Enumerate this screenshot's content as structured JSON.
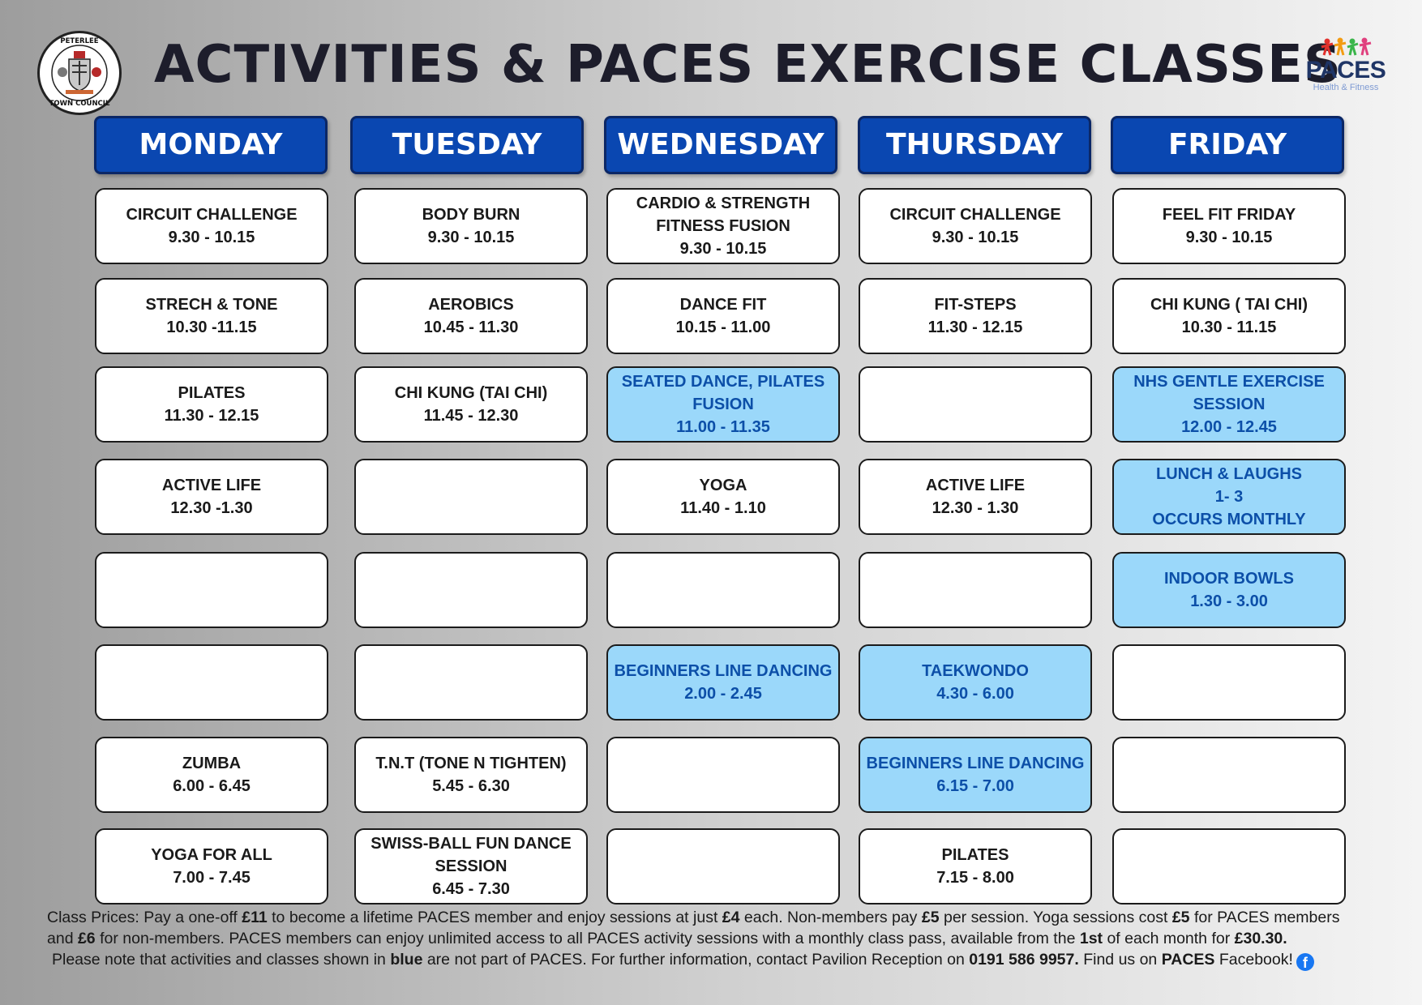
{
  "header": {
    "title": "ACTIVITIES & PACES EXERCISE CLASSES",
    "seal_text_top": "PETERLEE",
    "seal_text_bottom": "TOWN COUNCIL",
    "logo_text": "PACES",
    "logo_tagline": "Health & Fitness"
  },
  "colors": {
    "day_header_bg": "#0a47b1",
    "paces_class_bg": "#ffffff",
    "non_paces_class_bg": "#9bd8fa",
    "non_paces_text": "#0c4fa8"
  },
  "days": [
    {
      "name": "MONDAY",
      "slots": [
        {
          "name": "CIRCUIT CHALLENGE",
          "time": "9.30 - 10.15",
          "blue": false
        },
        {
          "name": "STRECH & TONE",
          "time": "10.30 -11.15",
          "blue": false
        },
        {
          "name": "PILATES",
          "time": "11.30 - 12.15",
          "blue": false
        },
        {
          "name": "ACTIVE LIFE",
          "time": "12.30 -1.30",
          "blue": false
        },
        {
          "name": "",
          "time": "",
          "blue": false
        },
        {
          "name": "",
          "time": "",
          "blue": false
        },
        {
          "name": "ZUMBA",
          "time": "6.00 - 6.45",
          "blue": false
        },
        {
          "name": "YOGA FOR ALL",
          "time": "7.00 - 7.45",
          "blue": false
        }
      ]
    },
    {
      "name": "TUESDAY",
      "slots": [
        {
          "name": "BODY BURN",
          "time": "9.30 - 10.15",
          "blue": false
        },
        {
          "name": "AEROBICS",
          "time": "10.45 - 11.30",
          "blue": false
        },
        {
          "name": "CHI KUNG (TAI CHI)",
          "time": "11.45 - 12.30",
          "blue": false
        },
        {
          "name": "",
          "time": "",
          "blue": false
        },
        {
          "name": "",
          "time": "",
          "blue": false
        },
        {
          "name": "",
          "time": "",
          "blue": false
        },
        {
          "name": "T.N.T (TONE N TIGHTEN)",
          "time": "5.45 - 6.30",
          "blue": false
        },
        {
          "name": "SWISS-BALL FUN DANCE\nSESSION",
          "time": "6.45 - 7.30",
          "blue": false
        }
      ]
    },
    {
      "name": "WEDNESDAY",
      "slots": [
        {
          "name": "CARDIO & STRENGTH\nFITNESS FUSION",
          "time": "9.30 - 10.15",
          "blue": false
        },
        {
          "name": "DANCE FIT",
          "time": "10.15 - 11.00",
          "blue": false
        },
        {
          "name": "SEATED DANCE, PILATES\nFUSION",
          "time": "11.00 - 11.35",
          "blue": true
        },
        {
          "name": "YOGA",
          "time": "11.40 - 1.10",
          "blue": false
        },
        {
          "name": "",
          "time": "",
          "blue": false
        },
        {
          "name": "BEGINNERS LINE DANCING",
          "time": "2.00 - 2.45",
          "blue": true
        },
        {
          "name": "",
          "time": "",
          "blue": false
        },
        {
          "name": "",
          "time": "",
          "blue": false
        }
      ]
    },
    {
      "name": "THURSDAY",
      "slots": [
        {
          "name": "CIRCUIT CHALLENGE",
          "time": "9.30 - 10.15",
          "blue": false
        },
        {
          "name": "FIT-STEPS",
          "time": "11.30 - 12.15",
          "blue": false
        },
        {
          "name": "",
          "time": "",
          "blue": false
        },
        {
          "name": "ACTIVE LIFE",
          "time": "12.30 - 1.30",
          "blue": false
        },
        {
          "name": "",
          "time": "",
          "blue": false
        },
        {
          "name": "TAEKWONDO",
          "time": "4.30 - 6.00",
          "blue": true
        },
        {
          "name": "BEGINNERS LINE DANCING",
          "time": "6.15 - 7.00",
          "blue": true
        },
        {
          "name": "PILATES",
          "time": "7.15 - 8.00",
          "blue": false
        }
      ]
    },
    {
      "name": "FRIDAY",
      "slots": [
        {
          "name": "FEEL FIT FRIDAY",
          "time": "9.30 - 10.15",
          "blue": false
        },
        {
          "name": "CHI KUNG ( TAI CHI)",
          "time": "10.30 - 11.15",
          "blue": false
        },
        {
          "name": "NHS GENTLE EXERCISE\nSESSION",
          "time": "12.00 - 12.45",
          "blue": true
        },
        {
          "name": "LUNCH & LAUGHS\n1- 3",
          "time": "OCCURS MONTHLY",
          "blue": true
        },
        {
          "name": "INDOOR BOWLS",
          "time": "1.30 - 3.00",
          "blue": true
        },
        {
          "name": "",
          "time": "",
          "blue": false
        },
        {
          "name": "",
          "time": "",
          "blue": false
        },
        {
          "name": "",
          "time": "",
          "blue": false
        }
      ]
    }
  ],
  "footer": {
    "line1": {
      "t1": "Class Prices: Pay a one-off ",
      "b1": "£11",
      "t2": " to become a lifetime PACES member and enjoy sessions at just ",
      "b2": "£4",
      "t3": " each. Non-members pay ",
      "b3": "£5",
      "t4": " per session. Yoga sessions cost ",
      "b4": "£5",
      "t5": " for PACES members"
    },
    "line2": {
      "t1": "and ",
      "b1": "£6",
      "t2": " for non-members. PACES members can enjoy unlimited access to all PACES activity sessions with a monthly class pass, available from the ",
      "b2": "1st",
      "t3": " of each month for ",
      "b3": "£30.30."
    },
    "line3": {
      "t1": "Please note that activities and classes shown in ",
      "b1": "blue",
      "t2": " are not part of PACES. For further information, contact Pavilion Reception on ",
      "b2": "0191 586 9957.",
      "t3": " Find us on ",
      "b3": "PACES",
      "t4": " Facebook!"
    },
    "facebook_icon": "facebook-icon"
  }
}
